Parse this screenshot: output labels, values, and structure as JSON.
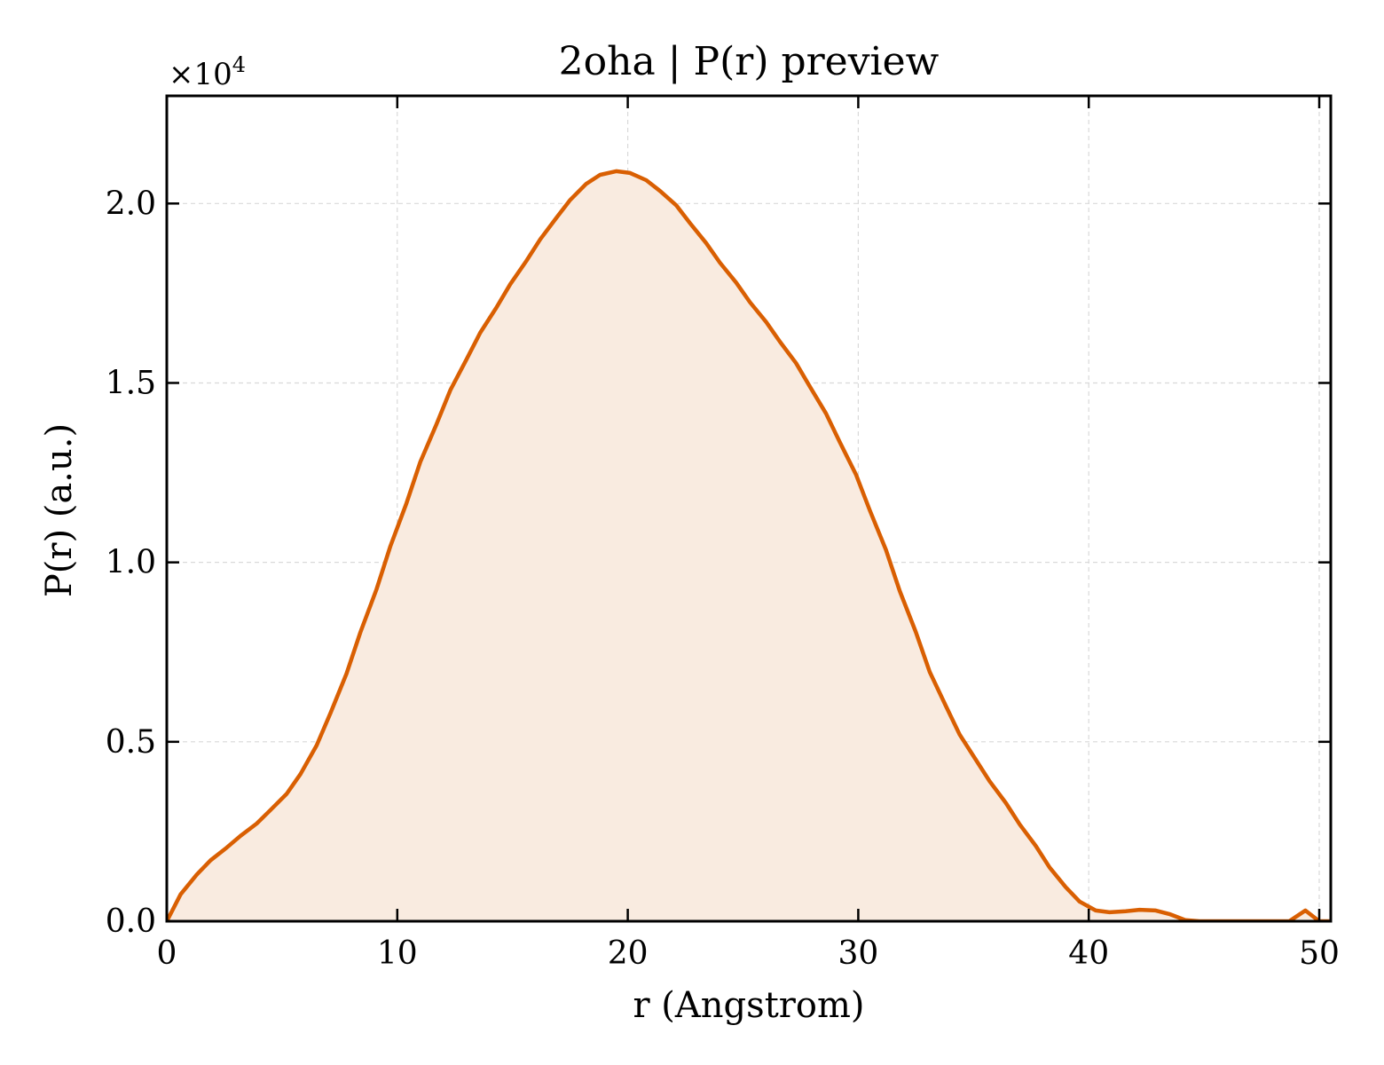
{
  "chart_data": {
    "type": "area",
    "title": "2oha | P(r) preview",
    "xlabel": "r (Angstrom)",
    "ylabel": "P(r) (a.u.)",
    "y_multiplier_label": "×10",
    "y_multiplier_exponent": "4",
    "xlim": [
      0,
      50.5
    ],
    "ylim": [
      0,
      23000
    ],
    "xticks": [
      0,
      10,
      20,
      30,
      40,
      50
    ],
    "xtick_labels": [
      "0",
      "10",
      "20",
      "30",
      "40",
      "50"
    ],
    "yticks": [
      0,
      5000,
      10000,
      15000,
      20000
    ],
    "ytick_labels": [
      "0.0",
      "0.5",
      "1.0",
      "1.5",
      "2.0"
    ],
    "grid": true,
    "line_color": "#d95f02",
    "fill_color": "#f9ebe0",
    "x": [
      0,
      0.6,
      1.3,
      1.9,
      2.6,
      3.2,
      3.9,
      4.5,
      5.2,
      5.8,
      6.5,
      7.1,
      7.8,
      8.4,
      9.1,
      9.7,
      10.4,
      11.0,
      11.7,
      12.3,
      13.0,
      13.6,
      14.3,
      14.9,
      15.6,
      16.2,
      16.9,
      17.5,
      18.2,
      18.8,
      19.5,
      20.1,
      20.8,
      21.4,
      22.1,
      22.7,
      23.4,
      24.0,
      24.7,
      25.3,
      26.0,
      26.6,
      27.3,
      27.9,
      28.6,
      29.2,
      29.9,
      30.5,
      31.2,
      31.8,
      32.5,
      33.1,
      33.8,
      34.4,
      35.1,
      35.7,
      36.4,
      37.0,
      37.7,
      38.3,
      39.0,
      39.6,
      40.3,
      40.9,
      41.6,
      42.2,
      42.9,
      43.5,
      44.2,
      44.8,
      45.5,
      46.1,
      46.8,
      47.4,
      48.1,
      48.7,
      49.4,
      50.0,
      50.5
    ],
    "y": [
      0,
      750,
      1300,
      1700,
      2050,
      2380,
      2720,
      3100,
      3550,
      4100,
      4900,
      5800,
      6900,
      8050,
      9250,
      10450,
      11650,
      12800,
      13850,
      14800,
      15650,
      16400,
      17100,
      17750,
      18400,
      19000,
      19600,
      20100,
      20550,
      20800,
      20900,
      20850,
      20650,
      20350,
      19950,
      19450,
      18900,
      18350,
      17800,
      17250,
      16700,
      16150,
      15550,
      14900,
      14150,
      13350,
      12450,
      11450,
      10350,
      9200,
      8050,
      6950,
      6000,
      5200,
      4500,
      3900,
      3300,
      2700,
      2100,
      1500,
      950,
      550,
      300,
      250,
      280,
      320,
      300,
      200,
      30,
      0,
      0,
      0,
      0,
      0,
      0,
      0,
      300,
      0,
      0
    ]
  }
}
